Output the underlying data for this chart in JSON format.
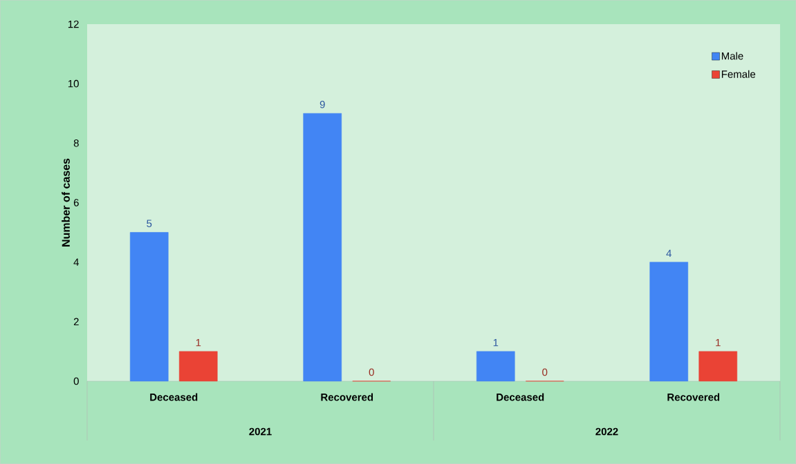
{
  "chart_data": {
    "type": "bar",
    "ylabel": "Number of cases",
    "categories": [
      "Deceased",
      "Recovered",
      "Deceased",
      "Recovered"
    ],
    "annotations": [
      "2021",
      "2022"
    ],
    "series": [
      {
        "name": "Male",
        "color": "#4285f4",
        "values": [
          5,
          9,
          1,
          4
        ]
      },
      {
        "name": "Female",
        "color": "#ea4335",
        "values": [
          1,
          0,
          0,
          1
        ]
      }
    ],
    "ylim": [
      0,
      12
    ],
    "yticks": [
      0,
      2,
      4,
      6,
      8,
      10,
      12
    ],
    "data_labels": true,
    "legend": "top right",
    "grid": false
  }
}
